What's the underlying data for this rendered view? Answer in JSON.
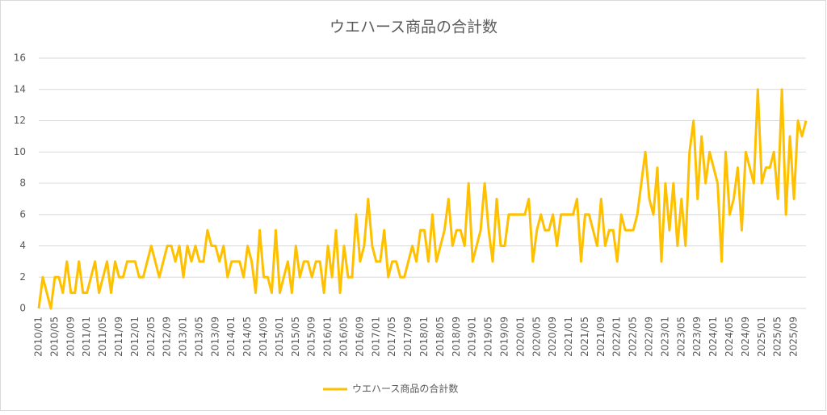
{
  "chart_data": {
    "type": "line",
    "title": "ウエハース商品の合計数",
    "categories": [
      "2010/01",
      null,
      null,
      null,
      "2010/05",
      null,
      null,
      null,
      "2010/09",
      null,
      null,
      null,
      "2011/01",
      null,
      null,
      null,
      "2011/05",
      null,
      null,
      null,
      "2011/09",
      null,
      null,
      null,
      "2012/01",
      null,
      null,
      null,
      "2012/05",
      null,
      null,
      null,
      "2012/09",
      null,
      null,
      null,
      "2013/01",
      null,
      null,
      null,
      "2013/05",
      null,
      null,
      null,
      "2013/09",
      null,
      null,
      null,
      "2014/01",
      null,
      null,
      null,
      "2014/05",
      null,
      null,
      null,
      "2014/09",
      null,
      null,
      null,
      "2015/01",
      null,
      null,
      null,
      "2015/05",
      null,
      null,
      null,
      "2015/09",
      null,
      null,
      null,
      "2016/01",
      null,
      null,
      null,
      "2016/05",
      null,
      null,
      null,
      "2016/09",
      null,
      null,
      null,
      "2017/01",
      null,
      null,
      null,
      "2017/05",
      null,
      null,
      null,
      "2017/09",
      null,
      null,
      null,
      "2018/01",
      null,
      null,
      null,
      "2018/05",
      null,
      null,
      null,
      "2018/09",
      null,
      null,
      null,
      "2019/01",
      null,
      null,
      null,
      "2019/05",
      null,
      null,
      null,
      "2019/09",
      null,
      null,
      null,
      "2020/01",
      null,
      null,
      null,
      "2020/05",
      null,
      null,
      null,
      "2020/09",
      null,
      null,
      null,
      "2021/01",
      null,
      null,
      null,
      "2021/05",
      null,
      null,
      null,
      "2021/09",
      null,
      null,
      null,
      "2022/01",
      null,
      null,
      null,
      "2022/05",
      null,
      null,
      null,
      "2022/09",
      null,
      null,
      null,
      "2023/01",
      null,
      null,
      null,
      "2023/05",
      null,
      null,
      null,
      "2023/09",
      null,
      null,
      null,
      "2024/01",
      null,
      null,
      null,
      "2024/05",
      null,
      null,
      null,
      "2024/09",
      null,
      null,
      null,
      "2025/01",
      null,
      null,
      null,
      "2025/05",
      null,
      null,
      null,
      "2025/09",
      null,
      null,
      null
    ],
    "series": [
      {
        "name": "ウエハース商品の合計数",
        "color": "#ffc000",
        "values": [
          0,
          2,
          1,
          0,
          2,
          2,
          1,
          3,
          1,
          1,
          3,
          1,
          1,
          2,
          3,
          1,
          2,
          3,
          1,
          3,
          2,
          2,
          3,
          3,
          3,
          2,
          2,
          3,
          4,
          3,
          2,
          3,
          4,
          4,
          3,
          4,
          2,
          4,
          3,
          4,
          3,
          3,
          5,
          4,
          4,
          3,
          4,
          2,
          3,
          3,
          3,
          2,
          4,
          3,
          1,
          5,
          2,
          2,
          1,
          5,
          1,
          2,
          3,
          1,
          4,
          2,
          3,
          3,
          2,
          3,
          3,
          1,
          4,
          2,
          5,
          1,
          4,
          2,
          2,
          6,
          3,
          4,
          7,
          4,
          3,
          3,
          5,
          2,
          3,
          3,
          2,
          2,
          3,
          4,
          3,
          5,
          5,
          3,
          6,
          3,
          4,
          5,
          7,
          4,
          5,
          5,
          4,
          8,
          3,
          4,
          5,
          8,
          5,
          3,
          7,
          4,
          4,
          6,
          6,
          6,
          6,
          6,
          7,
          3,
          5,
          6,
          5,
          5,
          6,
          4,
          6,
          6,
          6,
          6,
          7,
          3,
          6,
          6,
          5,
          4,
          7,
          4,
          5,
          5,
          3,
          6,
          5,
          5,
          5,
          6,
          8,
          10,
          7,
          6,
          9,
          3,
          8,
          5,
          8,
          4,
          7,
          4,
          10,
          12,
          7,
          11,
          8,
          10,
          9,
          8,
          3,
          10,
          6,
          7,
          9,
          5,
          10,
          9,
          8,
          14,
          8,
          9,
          9,
          10,
          7,
          14,
          6,
          11,
          7,
          12,
          11,
          12
        ]
      }
    ],
    "ylim": [
      0,
      16
    ],
    "yticks": [
      0,
      2,
      4,
      6,
      8,
      10,
      12,
      14,
      16
    ],
    "grid": true,
    "legend": "bottom"
  }
}
